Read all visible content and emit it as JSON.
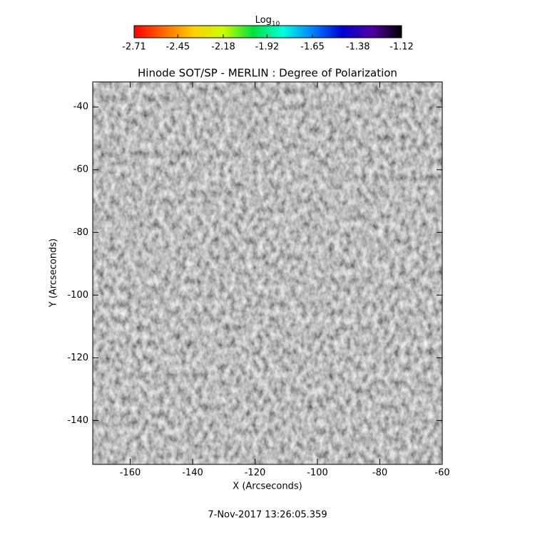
{
  "chart_data": {
    "type": "image",
    "title": "Hinode SOT/SP - MERLIN : Degree of Polarization",
    "xlabel": "X (Arcseconds)",
    "ylabel": "Y (Arcseconds)",
    "xlim": [
      -172,
      -60
    ],
    "ylim": [
      -154,
      -32
    ],
    "xticks": [
      -160,
      -140,
      -120,
      -100,
      -80,
      -60
    ],
    "yticks": [
      -140,
      -120,
      -100,
      -80,
      -60,
      -40
    ],
    "colorbar": {
      "label": "Log",
      "label_subscript": "10",
      "clim": [
        -2.71,
        -1.12
      ],
      "ticks": [
        -2.71,
        -2.45,
        -2.18,
        -1.92,
        -1.65,
        -1.38,
        -1.12
      ],
      "colormap": [
        "#ff0000",
        "#ff6a00",
        "#ffd000",
        "#c8ff00",
        "#00e040",
        "#00ffe0",
        "#0080ff",
        "#0000d0",
        "#5000a0",
        "#000000"
      ]
    },
    "footer": "7-Nov-2017 13:26:05.359"
  }
}
